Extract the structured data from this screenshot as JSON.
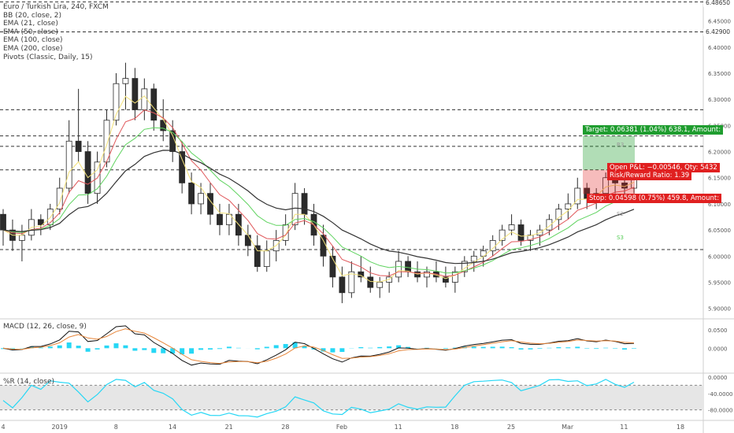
{
  "header": {
    "symbol_line": "Euro / Turkish Lira, 240, FXCM",
    "indicators": [
      "BB (20, close, 2)",
      "EMA (21, close)",
      "EMA (50, close)",
      "EMA (100, close)",
      "EMA (200, close)",
      "Pivots (Classic, Daily, 15)"
    ]
  },
  "colors": {
    "up": "#2b2b2b",
    "bb": "#8aa6d6",
    "bb_fill": "#e8e8e8",
    "ema21": "#f3e27a",
    "ema50": "#e0585b",
    "ema100": "#5fd35f",
    "ema200": "#333333",
    "macd": "#111111",
    "signal": "#e8863a",
    "hist": "#26d7f5",
    "wr": "#26d7f5",
    "target": "#1f9d2f",
    "stop": "#e02020"
  },
  "chart_data": [
    {
      "type": "candlestick",
      "symbol": "EURTRY",
      "timeframe": "240",
      "x_labels": [
        "4",
        "2019",
        "8",
        "14",
        "21",
        "28",
        "Feb",
        "11",
        "18",
        "25",
        "Mar",
        "11",
        "18"
      ],
      "y_axis": {
        "ticks": [
          "6.45000",
          "6.40000",
          "6.35000",
          "6.30000",
          "6.25000",
          "6.20000",
          "6.15000",
          "6.10000",
          "6.05000",
          "6.00000",
          "5.95000",
          "5.90000"
        ],
        "ylim": [
          5.88,
          6.49
        ]
      },
      "price_tags": {
        "6.48650": "6.48650",
        "6.42900": "6.42900",
        "6.28000": "6.28000",
        "6.23000": "6.23000",
        "6.22861": "6.22861",
        "6.21000": "6.21000",
        "6.16500": "6.16500",
        "6.16480": "6.16480",
        "6.15924": "6.15924",
        "countdown": "03:26:38",
        "6.11882": "6.11882",
        "6.01250": "6.01250"
      },
      "horizontal_levels": [
        6.4865,
        6.429,
        6.28,
        6.23,
        6.21,
        6.165,
        6.0125
      ],
      "candles_approx": [
        [
          6.08,
          6.09,
          6.02,
          6.05
        ],
        [
          6.05,
          6.07,
          6.01,
          6.03
        ],
        [
          6.03,
          6.06,
          5.99,
          6.04
        ],
        [
          6.04,
          6.09,
          6.03,
          6.07
        ],
        [
          6.07,
          6.08,
          6.04,
          6.06
        ],
        [
          6.06,
          6.1,
          6.05,
          6.09
        ],
        [
          6.09,
          6.15,
          6.08,
          6.13
        ],
        [
          6.13,
          6.26,
          6.12,
          6.22
        ],
        [
          6.22,
          6.32,
          6.18,
          6.2
        ],
        [
          6.2,
          6.22,
          6.1,
          6.12
        ],
        [
          6.12,
          6.2,
          6.1,
          6.18
        ],
        [
          6.18,
          6.28,
          6.17,
          6.26
        ],
        [
          6.26,
          6.35,
          6.25,
          6.33
        ],
        [
          6.33,
          6.37,
          6.28,
          6.34
        ],
        [
          6.34,
          6.36,
          6.26,
          6.28
        ],
        [
          6.28,
          6.34,
          6.26,
          6.32
        ],
        [
          6.32,
          6.33,
          6.24,
          6.26
        ],
        [
          6.26,
          6.3,
          6.22,
          6.24
        ],
        [
          6.24,
          6.26,
          6.18,
          6.2
        ],
        [
          6.2,
          6.22,
          6.12,
          6.14
        ],
        [
          6.14,
          6.16,
          6.08,
          6.1
        ],
        [
          6.1,
          6.14,
          6.08,
          6.12
        ],
        [
          6.12,
          6.14,
          6.06,
          6.08
        ],
        [
          6.08,
          6.1,
          6.04,
          6.06
        ],
        [
          6.06,
          6.1,
          6.04,
          6.08
        ],
        [
          6.08,
          6.1,
          6.02,
          6.04
        ],
        [
          6.04,
          6.06,
          6.0,
          6.02
        ],
        [
          6.02,
          6.04,
          5.97,
          5.98
        ],
        [
          5.98,
          6.03,
          5.97,
          6.01
        ],
        [
          6.01,
          6.05,
          5.99,
          6.03
        ],
        [
          6.03,
          6.08,
          6.02,
          6.06
        ],
        [
          6.06,
          6.14,
          6.05,
          6.12
        ],
        [
          6.12,
          6.13,
          6.06,
          6.08
        ],
        [
          6.08,
          6.1,
          6.02,
          6.04
        ],
        [
          6.04,
          6.06,
          5.98,
          6.0
        ],
        [
          6.0,
          6.02,
          5.94,
          5.96
        ],
        [
          5.96,
          5.98,
          5.91,
          5.93
        ],
        [
          5.93,
          5.99,
          5.92,
          5.97
        ],
        [
          5.97,
          6.0,
          5.95,
          5.96
        ],
        [
          5.96,
          5.98,
          5.93,
          5.94
        ],
        [
          5.94,
          5.96,
          5.92,
          5.95
        ],
        [
          5.95,
          5.97,
          5.93,
          5.96
        ],
        [
          5.96,
          6.01,
          5.95,
          5.99
        ],
        [
          5.99,
          6.0,
          5.96,
          5.97
        ],
        [
          5.97,
          5.99,
          5.95,
          5.96
        ],
        [
          5.96,
          5.98,
          5.94,
          5.97
        ],
        [
          5.97,
          5.99,
          5.95,
          5.96
        ],
        [
          5.96,
          5.98,
          5.94,
          5.95
        ],
        [
          5.95,
          5.98,
          5.93,
          5.97
        ],
        [
          5.97,
          6.0,
          5.96,
          5.99
        ],
        [
          5.99,
          6.01,
          5.97,
          6.0
        ],
        [
          6.0,
          6.02,
          5.98,
          6.01
        ],
        [
          6.01,
          6.04,
          6.0,
          6.03
        ],
        [
          6.03,
          6.06,
          6.02,
          6.05
        ],
        [
          6.05,
          6.08,
          6.04,
          6.06
        ],
        [
          6.06,
          6.07,
          6.02,
          6.03
        ],
        [
          6.03,
          6.05,
          6.01,
          6.04
        ],
        [
          6.04,
          6.06,
          6.02,
          6.05
        ],
        [
          6.05,
          6.08,
          6.04,
          6.07
        ],
        [
          6.07,
          6.1,
          6.05,
          6.09
        ],
        [
          6.09,
          6.12,
          6.07,
          6.1
        ],
        [
          6.1,
          6.15,
          6.09,
          6.13
        ],
        [
          6.13,
          6.14,
          6.09,
          6.11
        ],
        [
          6.11,
          6.13,
          6.09,
          6.12
        ],
        [
          6.12,
          6.16,
          6.11,
          6.15
        ],
        [
          6.15,
          6.17,
          6.12,
          6.14
        ],
        [
          6.14,
          6.16,
          6.11,
          6.13
        ],
        [
          6.13,
          6.16,
          6.12,
          6.15
        ]
      ]
    },
    {
      "type": "line",
      "name": "MACD (12, 26, close, 9)",
      "y_ticks": [
        "0.0500",
        "0.0000"
      ],
      "ylim": [
        -0.06,
        0.07
      ]
    },
    {
      "type": "line",
      "name": "%R (14, close)",
      "y_ticks": [
        "0.0000",
        "-40.0000",
        "-80.0000"
      ],
      "ylim": [
        -100,
        0
      ]
    }
  ],
  "position": {
    "target_label": "Target: 0.06381 (1.04%) 638.1, Amount:",
    "open_label": "Open P&L: −0.00546, Qty: 5432",
    "rr_label": "Risk/Reward Ratio: 1.39",
    "stop_label": "Stop: 0.04598 (0.75%) 459.8, Amount:"
  },
  "pivots": {
    "r3": "R3",
    "s2": "S2",
    "s3": "S3"
  }
}
